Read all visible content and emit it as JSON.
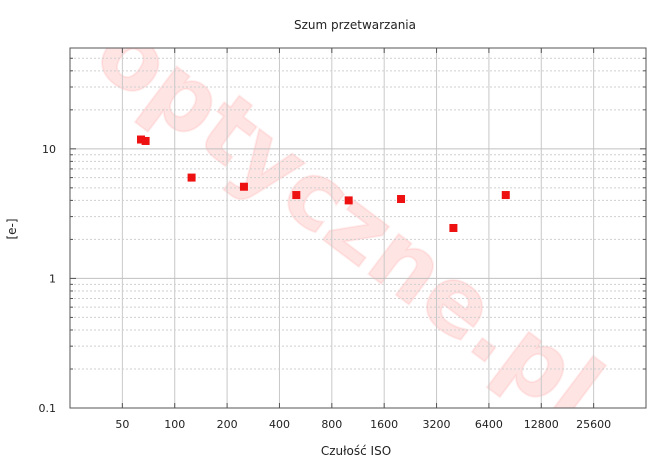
{
  "chart_data": {
    "type": "scatter",
    "title": "Szum przetwarzania",
    "xlabel": "Czułość ISO",
    "ylabel": "[e-]",
    "x_scale": "log2",
    "y_scale": "log10",
    "xlim": [
      25,
      51200
    ],
    "ylim": [
      0.1,
      60
    ],
    "x_ticks": [
      {
        "value": 50,
        "label": "50"
      },
      {
        "value": 100,
        "label": "100"
      },
      {
        "value": 200,
        "label": "200"
      },
      {
        "value": 400,
        "label": "400"
      },
      {
        "value": 800,
        "label": "800"
      },
      {
        "value": 1600,
        "label": "1600"
      },
      {
        "value": 3200,
        "label": "3200"
      },
      {
        "value": 6400,
        "label": "6400"
      },
      {
        "value": 12800,
        "label": "12800"
      },
      {
        "value": 25600,
        "label": "25600"
      }
    ],
    "y_ticks": [
      {
        "value": 0.1,
        "label": "0.1"
      },
      {
        "value": 1,
        "label": "1"
      },
      {
        "value": 10,
        "label": "10"
      }
    ],
    "grid": true,
    "marker_color": "#ee1111",
    "points": [
      {
        "x": 64,
        "y": 11.8
      },
      {
        "x": 68,
        "y": 11.5
      },
      {
        "x": 125,
        "y": 6.0
      },
      {
        "x": 250,
        "y": 5.1
      },
      {
        "x": 500,
        "y": 4.4
      },
      {
        "x": 1000,
        "y": 4.0
      },
      {
        "x": 2000,
        "y": 4.1
      },
      {
        "x": 4000,
        "y": 2.45
      },
      {
        "x": 8000,
        "y": 4.4
      }
    ]
  },
  "watermark": {
    "text": "optyczne.pl",
    "color": "#ff5a5a"
  }
}
